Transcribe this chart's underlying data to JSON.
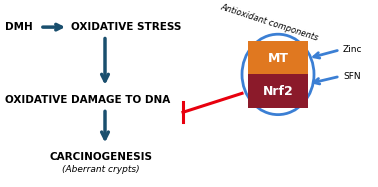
{
  "bg_color": "#ffffff",
  "teal": "#1a4f6e",
  "red": "#e8000e",
  "blue_arrow": "#3b7fd4",
  "mt_color": "#e07820",
  "nrf2_color": "#8b1a2a",
  "text_color": "#000000",
  "dmh_text": "DMH",
  "ox_stress_text": "OXIDATIVE STRESS",
  "ox_damage_text": "OXIDATIVE DAMAGE TO DNA",
  "carcino_text": "CARCINOGENESIS",
  "aberrant_text": "(Aberrant crypts)",
  "antioxidant_text": "Antioxidant components",
  "mt_text": "MT",
  "nrf2_text": "Nrf2",
  "zinc_text": "Zinc",
  "sfn_text": "SFN",
  "figw": 3.78,
  "figh": 1.87,
  "dpi": 100
}
